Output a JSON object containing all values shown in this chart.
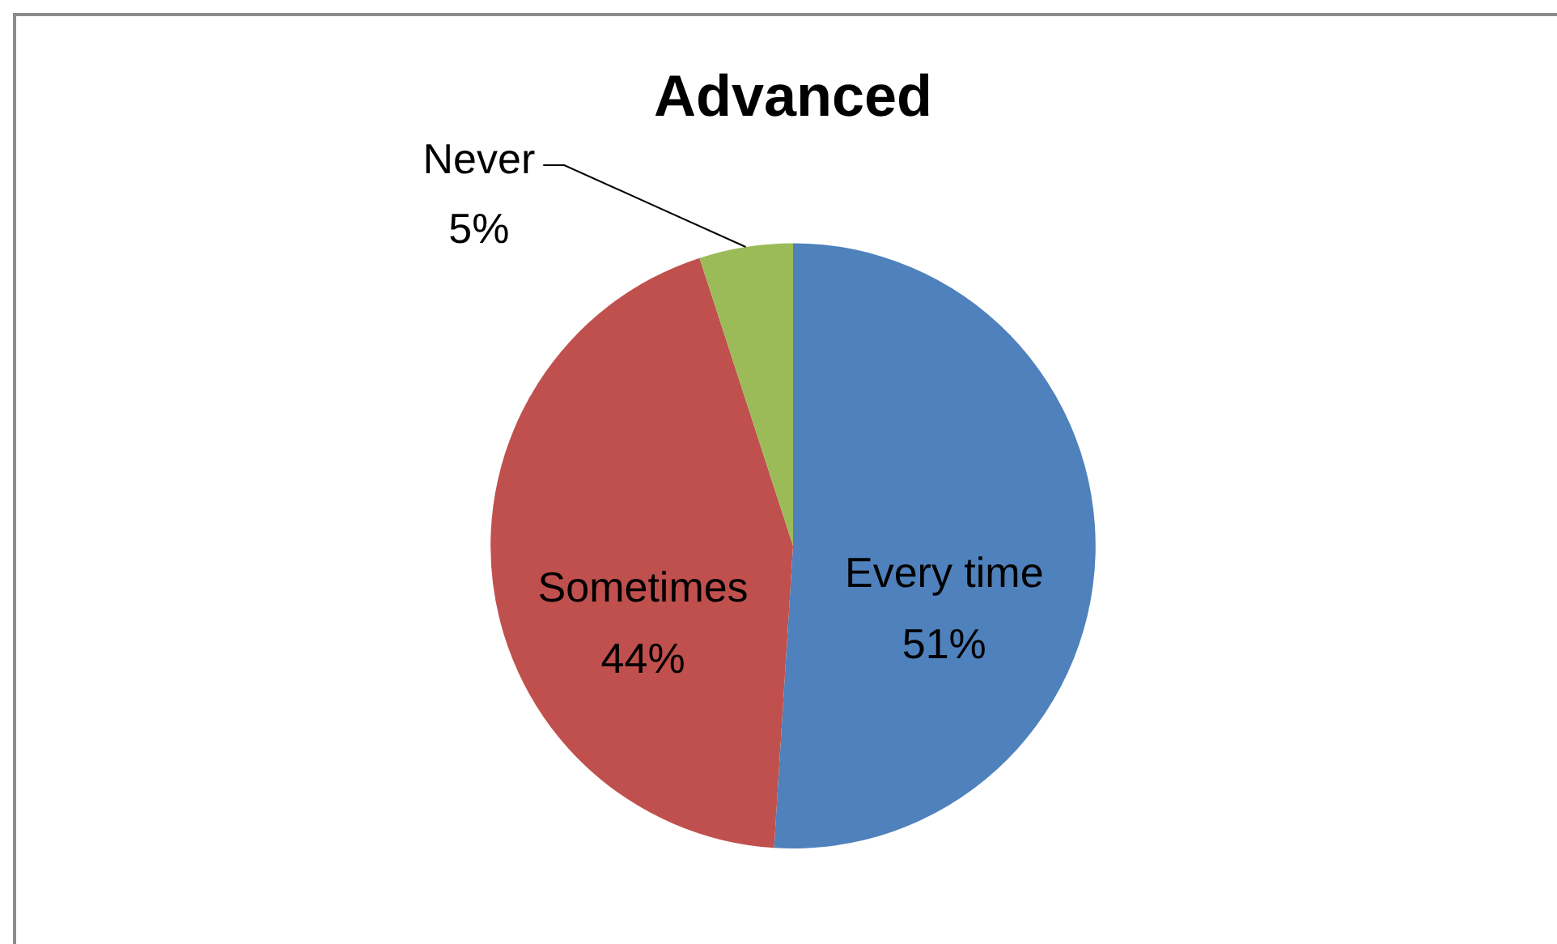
{
  "chart_data": {
    "type": "pie",
    "title": "Advanced",
    "categories": [
      "Every time",
      "Sometimes",
      "Never"
    ],
    "values": [
      51,
      44,
      5
    ],
    "colors": [
      "#4f81bd",
      "#c0504d",
      "#9bbb59"
    ],
    "value_labels": [
      "51%",
      "44%",
      "5%"
    ],
    "legend": false
  }
}
